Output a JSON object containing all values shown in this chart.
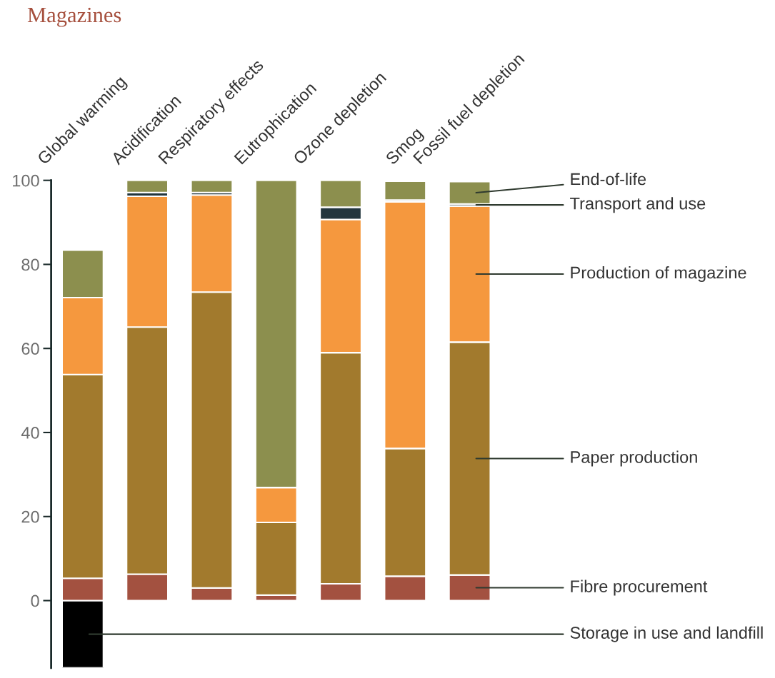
{
  "chart_data": {
    "type": "bar",
    "stacked": true,
    "title": "Magazines",
    "categories": [
      "Global warming",
      "Acidification",
      "Respiratory effects",
      "Eutrophication",
      "Ozone depletion",
      "Smog",
      "Fossil fuel depletion"
    ],
    "series": [
      {
        "name": "Storage in use and landfill",
        "color": "#000000",
        "values": [
          -16,
          null,
          null,
          null,
          null,
          null,
          null
        ]
      },
      {
        "name": "Fibre procurement",
        "color": "#a35140",
        "values": [
          5.3,
          6.3,
          3.0,
          1.3,
          4.0,
          5.8,
          6.1
        ]
      },
      {
        "name": "Paper production",
        "color": "#a27a2d",
        "values": [
          48.5,
          58.8,
          70.4,
          17.3,
          55.0,
          30.4,
          55.4
        ]
      },
      {
        "name": "Production of magazine",
        "color": "#f5983e",
        "values": [
          18.3,
          31.1,
          23.1,
          8.3,
          31.7,
          58.7,
          32.4
        ]
      },
      {
        "name": "Transport and use",
        "color": "#22353d",
        "values": [
          0,
          0.9,
          0.6,
          0,
          2.9,
          0.4,
          0.5
        ]
      },
      {
        "name": "End-of-life",
        "color": "#8c8f4e",
        "values": [
          11.3,
          2.9,
          2.9,
          73.1,
          6.4,
          4.5,
          5.3
        ]
      }
    ],
    "ylim": [
      -16,
      100
    ],
    "yticks": [
      0,
      20,
      40,
      60,
      80,
      100
    ],
    "grid": false,
    "legend": "right"
  }
}
